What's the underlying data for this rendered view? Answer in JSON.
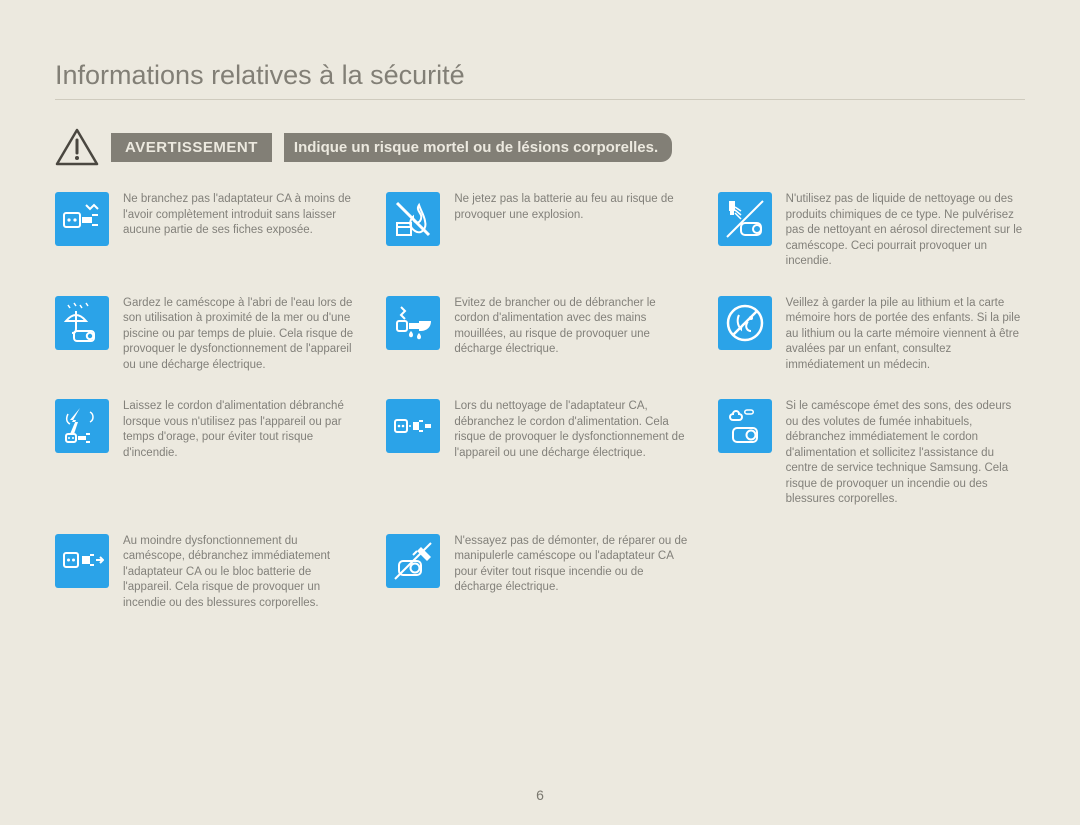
{
  "title": "Informations relatives à la sécurité",
  "warning": {
    "label": "AVERTISSEMENT",
    "text": "Indique un risque mortel ou de lésions corporelles."
  },
  "items": [
    {
      "icon": "plug-partial",
      "text": "Ne branchez pas l'adaptateur CA à moins de l'avoir complètement introduit sans laisser aucune partie de ses fiches exposée."
    },
    {
      "icon": "no-fire",
      "text": "Ne jetez pas la batterie au feu au risque de provoquer une explosion."
    },
    {
      "icon": "no-spray",
      "text": "N'utilisez pas de liquide de nettoyage ou des produits chimiques de ce type. Ne pulvérisez pas de nettoyant en aérosol directement sur le caméscope. Ceci pourrait provoquer un incendie."
    },
    {
      "icon": "umbrella-rain",
      "text": "Gardez le caméscope à l'abri de l'eau lors de son utilisation à proximité de la mer ou d'une piscine ou par temps de pluie. Cela risque de provoquer le dysfonctionnement de l'appareil ou une décharge électrique."
    },
    {
      "icon": "wet-plug",
      "text": "Evitez de brancher ou de débrancher le cordon d'alimentation avec des mains mouillées, au risque de provoquer une décharge électrique."
    },
    {
      "icon": "no-swallow",
      "text": "Veillez à garder la pile au lithium et la carte mémoire hors de portée des enfants. Si la pile au lithium ou la carte mémoire viennent à être avalées par un enfant, consultez immédiatement un médecin."
    },
    {
      "icon": "lightning-plug",
      "text": "Laissez le cordon d'alimentation débranché lorsque vous n'utilisez pas l'appareil ou par temps d'orage, pour éviter tout risque d'incendie."
    },
    {
      "icon": "unplug-clean",
      "text": "Lors du nettoyage de l'adaptateur CA, débranchez le cordon d'alimentation. Cela risque de provoquer le dysfonctionnement de l'appareil ou une décharge électrique."
    },
    {
      "icon": "smoke-device",
      "text": "Si le caméscope émet des sons, des odeurs ou des volutes de fumée inhabituels, débranchez immédiatement le cordon d'alimentation et sollicitez l'assistance du centre de service technique Samsung. Cela risque de provoquer un incendie ou des blessures corporelles."
    },
    {
      "icon": "malfunction-out",
      "text": "Au moindre dysfonctionnement du caméscope, débranchez immédiatement l'adaptateur CA ou le bloc batterie de l'appareil. Cela risque de provoquer un incendie ou des blessures corporelles."
    },
    {
      "icon": "no-disassemble",
      "text": "N'essayez pas de démonter, de réparer ou de manipulerle caméscope ou l'adaptateur CA pour éviter tout risque incendie ou de décharge électrique."
    }
  ],
  "pageNumber": "6",
  "colors": {
    "background": "#ece9df",
    "iconBg": "#2ba3e8",
    "barBg": "#827f76",
    "text": "#82807a"
  },
  "iconSvgs": {
    "plug-partial": "<rect x='4' y='16' width='16' height='14' rx='2' fill='none' stroke='#fff' stroke-width='2'/><circle cx='9' cy='23' r='1.6' fill='#fff'/><circle cx='15' cy='23' r='1.6' fill='#fff'/><path d='M22 20 L32 20 L32 26 L22 26 Z' fill='#fff'/><path d='M32 18 L38 18 M32 28 L38 28' stroke='#fff' stroke-width='2'/><path d='M26 8 L30 12 L34 8 L38 12' stroke='#fff' stroke-width='2' fill='none'/>",
    "no-fire": "<line x1='6' y1='6' x2='38' y2='38' stroke='#fff' stroke-width='3'/><path d='M28 8 C24 14 32 16 30 22 C28 28 22 26 22 20 C18 24 18 30 24 34 C30 38 36 32 34 24 C33 18 30 14 28 8 Z' fill='none' stroke='#fff' stroke-width='2'/><rect x='6' y='26' width='14' height='12' fill='none' stroke='#fff' stroke-width='2'/><line x1='6' y1='30' x2='20' y2='30' stroke='#fff' stroke-width='2'/>",
    "no-spray": "<rect x='18' y='26' width='20' height='12' rx='4' fill='none' stroke='#fff' stroke-width='2'/><circle cx='34' cy='32' r='4' fill='none' stroke='#fff' stroke-width='2'/><rect x='6' y='4' width='6' height='10' fill='#fff'/><rect x='7' y='14' width='4' height='4' fill='#fff'/><path d='M12 10 L18 14 M12 13 L18 18 M12 16 L18 22' stroke='#fff' stroke-width='1.5'/><line x1='4' y1='40' x2='40' y2='4' stroke='#fff' stroke-width='2'/>",
    "umbrella-rain": "<path d='M6 20 Q16 8 26 20 Z' fill='none' stroke='#fff' stroke-width='2'/><line x1='16' y1='10' x2='16' y2='28' stroke='#fff' stroke-width='2'/><path d='M16 28 Q16 32 12 32' fill='none' stroke='#fff' stroke-width='2'/><path d='M8 4 l2 3 M14 2 l2 3 M20 4 l2 3 M26 2 l2 3' stroke='#fff' stroke-width='1.5'/><rect x='14' y='30' width='20' height='10' rx='3' fill='none' stroke='#fff' stroke-width='2'/><circle cx='30' cy='35' r='3.2' fill='none' stroke='#fff' stroke-width='2'/>",
    "wet-plug": "<path d='M10 6 l4 4 l-4 4 l4 4' stroke='#fff' stroke-width='2' fill='none'/><rect x='6' y='20' width='10' height='10' rx='2' fill='none' stroke='#fff' stroke-width='2'/><path d='M18 22 h10 v6 h-10 Z' fill='#fff'/><path d='M28 20 L40 20 C40 30 30 30 30 30 L28 30 Z' fill='#fff'/><path d='M18 34 c0 3 4 3 4 0 c0 -2 -2 -4 -2 -4 s-2 2 -2 4 Z' fill='#fff'/><path d='M26 36 c0 3 4 3 4 0 c0 -2 -2 -4 -2 -4 s-2 2 -2 4 Z' fill='#fff'/>",
    "no-swallow": "<circle cx='22' cy='22' r='17' fill='none' stroke='#fff' stroke-width='2.5'/><line x1='10' y1='34' x2='34' y2='10' stroke='#fff' stroke-width='2.5'/><path d='M16 14 C14 18 14 24 18 28 C18 26 20 22 24 22 C22 26 24 30 28 30' fill='none' stroke='#fff' stroke-width='2'/><circle cx='28' cy='17' r='2' fill='#fff'/>",
    "lightning-plug": "<path d='M20 4 L12 18 L18 18 L14 30 L10 30 L16 16 L10 16 Z' fill='#fff'/><path d='M8 10 C6 14 6 18 10 20 M30 8 C34 10 34 16 30 18' fill='none' stroke='#fff' stroke-width='1.5'/><rect x='6' y='30' width='10' height='8' rx='2' fill='none' stroke='#fff' stroke-width='2'/><circle cx='9' cy='34' r='1' fill='#fff'/><circle cx='13' cy='34' r='1' fill='#fff'/><path d='M18 32 h8 v4 h-8 Z' fill='#fff'/><line x1='26' y1='30' x2='30' y2='30' stroke='#fff' stroke-width='2'/><line x1='26' y1='38' x2='30' y2='38' stroke='#fff' stroke-width='2'/>",
    "unplug-clean": "<rect x='4' y='16' width='12' height='12' rx='2' fill='none' stroke='#fff' stroke-width='2'/><circle cx='8' cy='22' r='1.3' fill='#fff'/><circle cx='12' cy='22' r='1.3' fill='#fff'/><path d='M22 18 h6 v8 h-6 Z' fill='#fff'/><line x1='28' y1='17' x2='32' y2='17' stroke='#fff' stroke-width='2'/><line x1='28' y1='27' x2='32' y2='27' stroke='#fff' stroke-width='2'/><path d='M34 20 h6 v4 h-6 Z' fill='#fff'/><path d='M18 22 L22 22' stroke='#fff' stroke-width='1.5' stroke-dasharray='2 2'/>",
    "smoke-device": "<path d='M10 10 c-4 0 -4 6 0 6 h6 c4 0 4 -6 0 -6 c0 -4 -6 -4 -6 0 Z' fill='none' stroke='#fff' stroke-width='2'/><path d='M24 6 c-3 0 -3 4 0 4 h4 c3 0 3 -4 0 -4 Z' fill='none' stroke='#fff' stroke-width='1.5'/><rect x='10' y='24' width='24' height='14' rx='4' fill='none' stroke='#fff' stroke-width='2'/><circle cx='28' cy='31' r='4.5' fill='none' stroke='#fff' stroke-width='2'/>",
    "malfunction-out": "<rect x='4' y='14' width='14' height='14' rx='2' fill='none' stroke='#fff' stroke-width='2'/><circle cx='8.5' cy='21' r='1.5' fill='#fff'/><circle cx='13.5' cy='21' r='1.5' fill='#fff'/><path d='M22 17 h8 v8 h-8 Z' fill='#fff'/><line x1='30' y1='16' x2='34' y2='16' stroke='#fff' stroke-width='2'/><line x1='30' y1='26' x2='34' y2='26' stroke='#fff' stroke-width='2'/><path d='M36 21 L42 21 M40 18 L43 21 L40 24' stroke='#fff' stroke-width='2' fill='none'/>",
    "no-disassemble": "<rect x='8' y='22' width='22' height='14' rx='4' fill='none' stroke='#fff' stroke-width='2'/><circle cx='24' cy='29' r='4.5' fill='none' stroke='#fff' stroke-width='2'/><path d='M30 8 L40 18 L36 22 L26 12 Z' fill='#fff'/><path d='M26 12 L22 16' stroke='#fff' stroke-width='2'/><line x1='4' y1='40' x2='40' y2='4' stroke='#fff' stroke-width='2'/>"
  }
}
